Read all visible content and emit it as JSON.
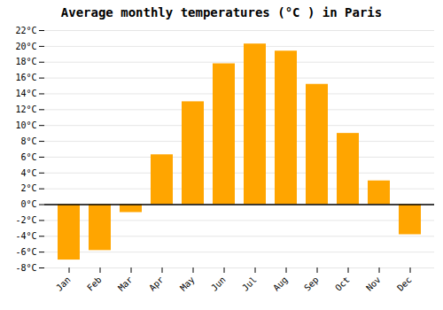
{
  "chart_data": {
    "type": "bar",
    "title": "Average monthly temperatures (°C ) in Paris",
    "categories": [
      "Jan",
      "Feb",
      "Mar",
      "Apr",
      "May",
      "Jun",
      "Jul",
      "Aug",
      "Sep",
      "Oct",
      "Nov",
      "Dec"
    ],
    "values": [
      -7,
      -5.8,
      -1,
      6.3,
      13,
      17.8,
      20.3,
      19.4,
      15.2,
      9,
      3,
      -3.8
    ],
    "color": "#FFA500",
    "ylim": [
      -8,
      22
    ],
    "yticks": [
      {
        "value": -8,
        "label": "-8°C"
      },
      {
        "value": -6,
        "label": "-6°C"
      },
      {
        "value": -4,
        "label": "-4°C"
      },
      {
        "value": -2,
        "label": "-2°C"
      },
      {
        "value": 0,
        "label": "0°C"
      },
      {
        "value": 2,
        "label": "2°C"
      },
      {
        "value": 4,
        "label": "4°C"
      },
      {
        "value": 6,
        "label": "6°C"
      },
      {
        "value": 8,
        "label": "8°C"
      },
      {
        "value": 10,
        "label": "10°C"
      },
      {
        "value": 12,
        "label": "12°C"
      },
      {
        "value": 14,
        "label": "14°C"
      },
      {
        "value": 16,
        "label": "16°C"
      },
      {
        "value": 18,
        "label": "18°C"
      },
      {
        "value": 20,
        "label": "20°C"
      },
      {
        "value": 22,
        "label": "22°C"
      }
    ],
    "grid": true
  }
}
